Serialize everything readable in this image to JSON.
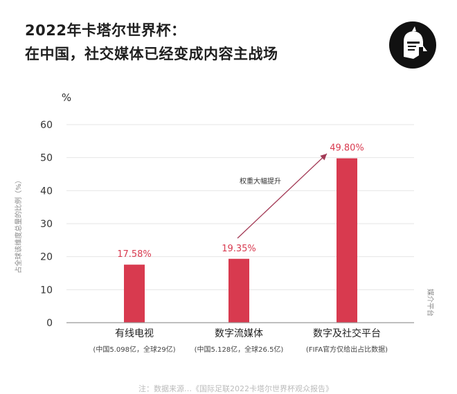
{
  "header": {
    "title_line1": "2022年卡塔尔世界杯：",
    "title_line2": "在中国，社交媒体已经变成内容主战场"
  },
  "footer": {
    "source_text": "注：数据来源…《国际足联2022卡塔尔世界杯观众报告》"
  },
  "colors": {
    "bar": "#d83a4f",
    "bar_label": "#d83a4f",
    "axis": "#999999",
    "grid": "#e6e6e6",
    "arrow": "#a33a56"
  },
  "chart_data": {
    "type": "bar",
    "ylabel": "占全球该维度总量的比例（%）",
    "yunit": "%",
    "xlabel": "媒介平台",
    "ylim": [
      0,
      60
    ],
    "yticks": [
      0,
      10,
      20,
      30,
      40,
      50,
      60
    ],
    "grid": true,
    "categories": [
      "有线电视",
      "数字流媒体",
      "数字及社交平台"
    ],
    "subcategories": [
      "(中国5.098亿，全球29亿)",
      "(中国5.128亿，全球26.5亿)",
      "(FIFA官方仅给出占比数据)"
    ],
    "values": [
      17.58,
      19.35,
      49.8
    ],
    "value_labels": [
      "17.58%",
      "19.35%",
      "49.80%"
    ],
    "annotation": "权重大幅提升"
  }
}
